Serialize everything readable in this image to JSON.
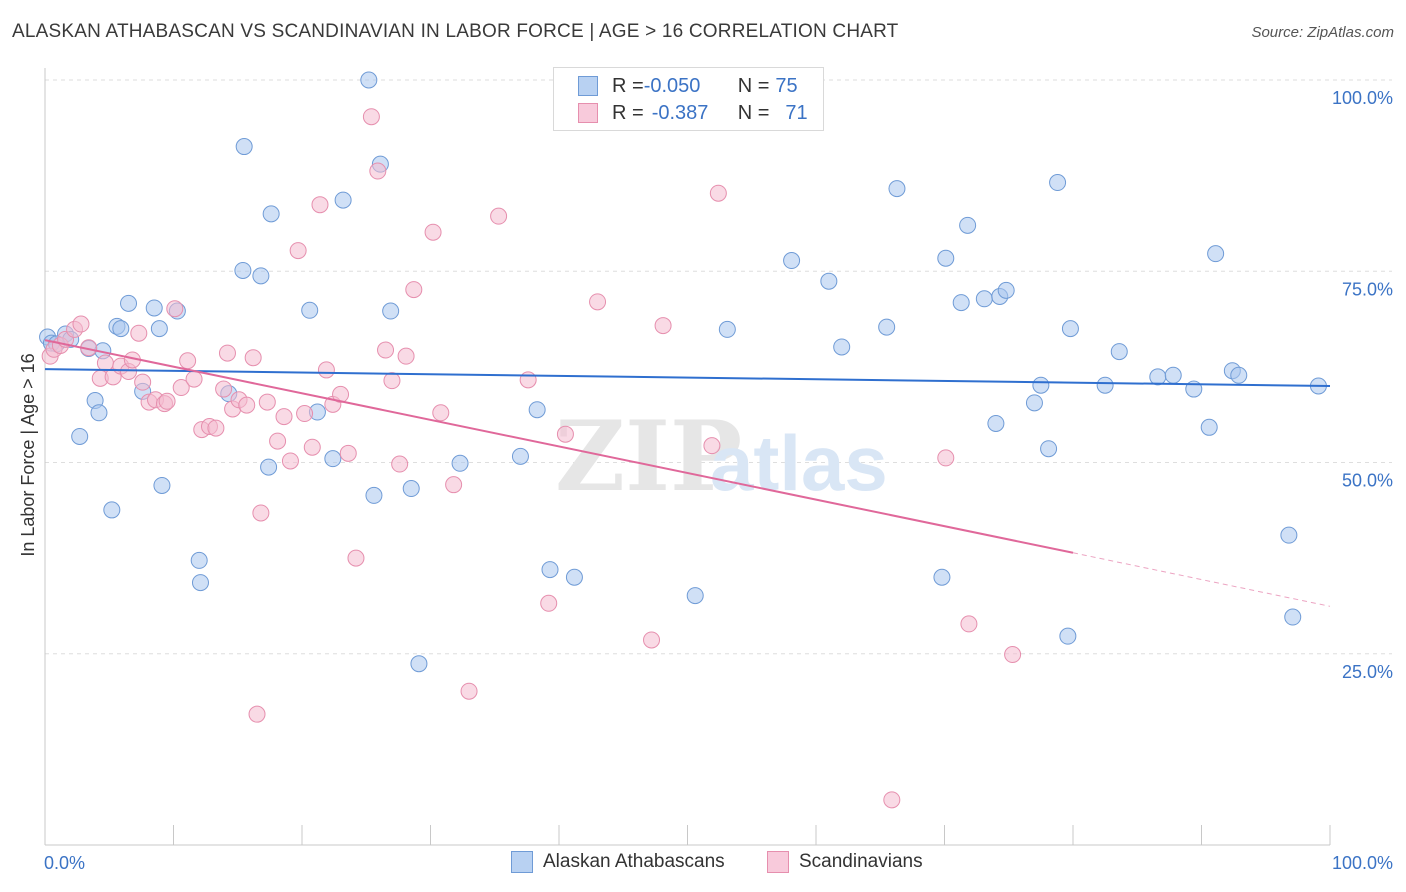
{
  "title": "ALASKAN ATHABASCAN VS SCANDINAVIAN IN LABOR FORCE | AGE > 16 CORRELATION CHART",
  "source": "Source: ZipAtlas.com",
  "watermark": {
    "zip": "ZIP",
    "atlas": "atlas"
  },
  "legend_box": {
    "rows": [
      {
        "r_label": "R = ",
        "r_value": "-0.050",
        "n_label": "N = ",
        "n_value": "75"
      },
      {
        "r_label": "R = ",
        "r_value": "-0.387",
        "n_label": "N = ",
        "n_value": "71"
      }
    ]
  },
  "chart_data": {
    "type": "scatter",
    "title": "ALASKAN ATHABASCAN VS SCANDINAVIAN IN LABOR FORCE | AGE > 16 CORRELATION CHART",
    "xlabel": "",
    "ylabel": "In Labor Force | Age > 16",
    "xlim": [
      0,
      100
    ],
    "ylim": [
      0,
      100
    ],
    "x_tick_labels": [
      "0.0%",
      "100.0%"
    ],
    "y_tick_labels": [
      "25.0%",
      "50.0%",
      "75.0%",
      "100.0%"
    ],
    "y_tick_values": [
      25,
      50,
      75,
      100
    ],
    "grid": true,
    "legend_placement": "bottom-center",
    "series": [
      {
        "name": "Alaskan Athabascans",
        "color": "#a9c6ef",
        "stroke": "#6f9bd6",
        "line_color": "#2f6fcf",
        "trend": {
          "x": [
            0,
            100
          ],
          "y": [
            62.2,
            60.0
          ]
        },
        "points": [
          [
            0.2,
            66.4
          ],
          [
            0.5,
            65.6
          ],
          [
            1.6,
            66.8
          ],
          [
            2.0,
            66.1
          ],
          [
            2.7,
            53.4
          ],
          [
            3.4,
            64.9
          ],
          [
            3.9,
            58.1
          ],
          [
            4.2,
            56.5
          ],
          [
            4.5,
            64.6
          ],
          [
            5.2,
            43.8
          ],
          [
            5.6,
            67.8
          ],
          [
            5.9,
            67.5
          ],
          [
            6.5,
            70.8
          ],
          [
            7.6,
            59.3
          ],
          [
            8.5,
            70.2
          ],
          [
            8.9,
            67.5
          ],
          [
            9.1,
            47.0
          ],
          [
            10.3,
            69.8
          ],
          [
            12.0,
            37.2
          ],
          [
            12.1,
            34.3
          ],
          [
            14.3,
            59.0
          ],
          [
            15.4,
            75.1
          ],
          [
            15.5,
            91.3
          ],
          [
            16.8,
            74.4
          ],
          [
            17.4,
            49.4
          ],
          [
            17.6,
            82.5
          ],
          [
            20.6,
            69.9
          ],
          [
            21.2,
            56.6
          ],
          [
            22.4,
            50.5
          ],
          [
            23.2,
            84.3
          ],
          [
            25.2,
            100.0
          ],
          [
            25.6,
            45.7
          ],
          [
            26.1,
            89.0
          ],
          [
            26.9,
            69.8
          ],
          [
            28.5,
            46.6
          ],
          [
            29.1,
            23.7
          ],
          [
            32.3,
            49.9
          ],
          [
            37.0,
            50.8
          ],
          [
            38.3,
            56.9
          ],
          [
            39.3,
            36.0
          ],
          [
            41.2,
            35.0
          ],
          [
            50.6,
            32.6
          ],
          [
            53.1,
            67.4
          ],
          [
            58.1,
            76.4
          ],
          [
            61.0,
            73.7
          ],
          [
            62.0,
            65.1
          ],
          [
            65.5,
            67.7
          ],
          [
            66.3,
            85.8
          ],
          [
            69.8,
            35.0
          ],
          [
            70.1,
            76.7
          ],
          [
            71.3,
            70.9
          ],
          [
            71.8,
            81.0
          ],
          [
            73.1,
            71.4
          ],
          [
            74.0,
            55.1
          ],
          [
            74.3,
            71.7
          ],
          [
            74.8,
            72.5
          ],
          [
            77.0,
            57.8
          ],
          [
            77.5,
            60.1
          ],
          [
            78.1,
            51.8
          ],
          [
            78.8,
            86.6
          ],
          [
            79.6,
            27.3
          ],
          [
            79.8,
            67.5
          ],
          [
            82.5,
            60.1
          ],
          [
            83.6,
            64.5
          ],
          [
            86.6,
            61.2
          ],
          [
            87.8,
            61.4
          ],
          [
            89.4,
            59.6
          ],
          [
            90.6,
            54.6
          ],
          [
            91.1,
            77.3
          ],
          [
            92.4,
            62.0
          ],
          [
            92.9,
            61.4
          ],
          [
            96.8,
            40.5
          ],
          [
            97.1,
            29.8
          ],
          [
            99.1,
            60.0
          ],
          [
            0.9,
            65.5
          ]
        ]
      },
      {
        "name": "Scandinavians",
        "color": "#f4bccf",
        "stroke": "#e68fae",
        "line_color": "#e0689a",
        "trend": {
          "x": [
            0,
            80
          ],
          "y": [
            66.0,
            38.2
          ]
        },
        "trend_dashed": {
          "x": [
            80,
            100
          ],
          "y": [
            38.2,
            31.2
          ]
        },
        "points": [
          [
            0.4,
            63.9
          ],
          [
            0.7,
            64.8
          ],
          [
            1.2,
            65.3
          ],
          [
            1.6,
            66.1
          ],
          [
            2.3,
            67.4
          ],
          [
            2.8,
            68.1
          ],
          [
            3.4,
            65.0
          ],
          [
            4.3,
            61.0
          ],
          [
            4.7,
            63.0
          ],
          [
            5.3,
            61.2
          ],
          [
            5.9,
            62.6
          ],
          [
            6.5,
            61.9
          ],
          [
            6.8,
            63.4
          ],
          [
            7.3,
            66.9
          ],
          [
            7.6,
            60.5
          ],
          [
            8.1,
            57.9
          ],
          [
            8.6,
            58.2
          ],
          [
            9.3,
            57.7
          ],
          [
            10.1,
            70.1
          ],
          [
            10.6,
            59.8
          ],
          [
            11.1,
            63.3
          ],
          [
            11.6,
            60.9
          ],
          [
            12.2,
            54.3
          ],
          [
            12.8,
            54.7
          ],
          [
            13.3,
            54.5
          ],
          [
            13.9,
            59.6
          ],
          [
            14.2,
            64.3
          ],
          [
            14.6,
            57.0
          ],
          [
            15.1,
            58.2
          ],
          [
            15.7,
            57.5
          ],
          [
            16.2,
            63.7
          ],
          [
            16.8,
            43.4
          ],
          [
            17.3,
            57.9
          ],
          [
            18.1,
            52.8
          ],
          [
            18.6,
            56.0
          ],
          [
            19.1,
            50.2
          ],
          [
            19.7,
            77.7
          ],
          [
            20.2,
            56.4
          ],
          [
            20.8,
            52.0
          ],
          [
            21.4,
            83.7
          ],
          [
            21.9,
            62.1
          ],
          [
            22.4,
            57.6
          ],
          [
            23.0,
            58.9
          ],
          [
            23.6,
            51.2
          ],
          [
            24.2,
            37.5
          ],
          [
            25.4,
            95.2
          ],
          [
            25.9,
            88.1
          ],
          [
            26.5,
            64.7
          ],
          [
            27.0,
            60.7
          ],
          [
            27.6,
            49.8
          ],
          [
            28.1,
            63.9
          ],
          [
            28.7,
            72.6
          ],
          [
            30.2,
            80.1
          ],
          [
            30.8,
            56.5
          ],
          [
            31.8,
            47.1
          ],
          [
            33.0,
            20.1
          ],
          [
            35.3,
            82.2
          ],
          [
            37.6,
            60.8
          ],
          [
            39.2,
            31.6
          ],
          [
            40.5,
            53.7
          ],
          [
            43.0,
            71.0
          ],
          [
            47.2,
            26.8
          ],
          [
            48.1,
            67.9
          ],
          [
            51.9,
            52.2
          ],
          [
            52.4,
            85.2
          ],
          [
            65.9,
            5.9
          ],
          [
            70.1,
            50.6
          ],
          [
            71.9,
            28.9
          ],
          [
            75.3,
            24.9
          ],
          [
            16.5,
            17.1
          ],
          [
            9.5,
            58.0
          ]
        ]
      }
    ]
  }
}
